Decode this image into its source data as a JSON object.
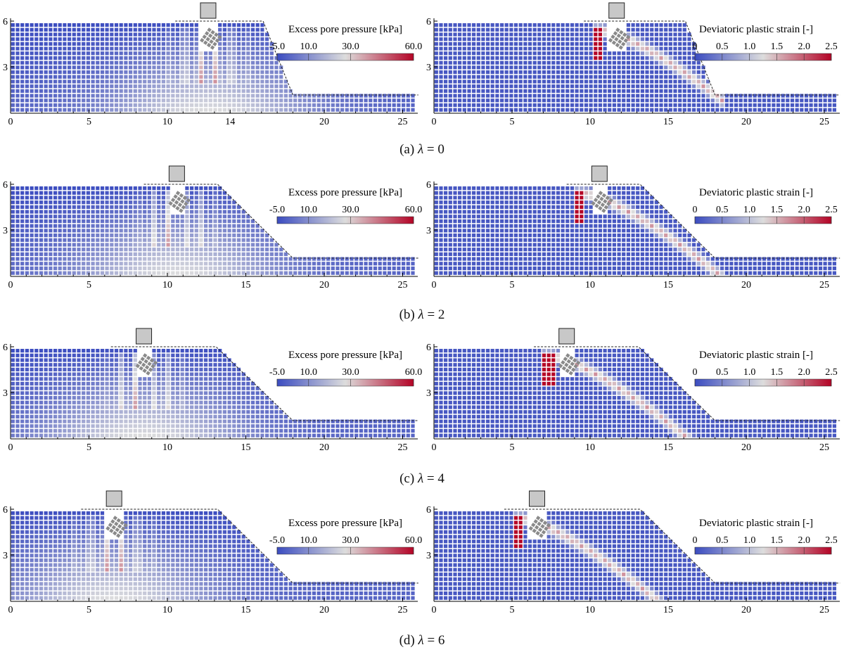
{
  "colors": {
    "low": "#3b4cc0",
    "mid": "#dddddd",
    "high": "#b40426",
    "footing": "#c8c8c8",
    "platform": "#8a8a8a"
  },
  "pore_cbar": {
    "title": "Excess pore pressure [kPa]",
    "ticks": [
      "-5.0",
      "10.0",
      "30.0",
      "60.0"
    ],
    "tick_values": [
      -5,
      10,
      30,
      60
    ],
    "min": -5,
    "max": 60
  },
  "strain_cbar": {
    "title": "Deviatoric plastic strain [-]",
    "ticks": [
      "0",
      "0.5",
      "1.0",
      "1.5",
      "2.0",
      "2.5"
    ],
    "tick_values": [
      0,
      0.5,
      1.0,
      1.5,
      2.0,
      2.5
    ],
    "min": 0,
    "max": 2.5
  },
  "rows": [
    {
      "caption_prefix": "(a)",
      "caption_symbol": "λ",
      "caption_value": "= 0",
      "left": {
        "y_ticks": [
          "6",
          "3"
        ],
        "x_ticks": [
          "0",
          "5",
          "10",
          "14",
          "20",
          "25"
        ],
        "x_values": [
          0,
          5,
          10,
          14,
          20,
          25
        ]
      },
      "right": {
        "y_ticks": [
          "6",
          "3"
        ],
        "x_ticks": [
          "0",
          "5",
          "10",
          "15",
          "20",
          "25"
        ],
        "x_values": [
          0,
          5,
          10,
          15,
          20,
          25
        ]
      },
      "footing_x_left": 12.6,
      "footing_x_right": 11.7
    },
    {
      "caption_prefix": "(b)",
      "caption_symbol": "λ",
      "caption_value": "= 2",
      "left": {
        "y_ticks": [
          "6",
          "3"
        ],
        "x_ticks": [
          "0",
          "5",
          "10",
          "15",
          "20",
          "25"
        ],
        "x_values": [
          0,
          5,
          10,
          15,
          20,
          25
        ]
      },
      "right": {
        "y_ticks": [
          "6",
          "3"
        ],
        "x_ticks": [
          "0",
          "5",
          "10",
          "15",
          "20",
          "25"
        ],
        "x_values": [
          0,
          5,
          10,
          15,
          20,
          25
        ]
      },
      "footing_x_left": 10.6,
      "footing_x_right": 10.6
    },
    {
      "caption_prefix": "(c)",
      "caption_symbol": "λ",
      "caption_value": "= 4",
      "left": {
        "y_ticks": [
          "6",
          "3"
        ],
        "x_ticks": [
          "0",
          "5",
          "10",
          "15",
          "20",
          "25"
        ],
        "x_values": [
          0,
          5,
          10,
          15,
          20,
          25
        ]
      },
      "right": {
        "y_ticks": [
          "6",
          "3"
        ],
        "x_ticks": [
          "0",
          "5",
          "10",
          "15",
          "20",
          "25"
        ],
        "x_values": [
          0,
          5,
          10,
          15,
          20,
          25
        ]
      },
      "footing_x_left": 8.5,
      "footing_x_right": 8.5
    },
    {
      "caption_prefix": "(d)",
      "caption_symbol": "λ",
      "caption_value": "= 6",
      "left": {
        "y_ticks": [
          "6",
          "3"
        ],
        "x_ticks": [
          "0",
          "5",
          "10",
          "15",
          "20",
          "25"
        ],
        "x_values": [
          0,
          5,
          10,
          15,
          20,
          25
        ]
      },
      "right": {
        "y_ticks": [
          "6",
          "3"
        ],
        "x_ticks": [
          "0",
          "5",
          "10",
          "15",
          "20",
          "25"
        ],
        "x_values": [
          0,
          5,
          10,
          15,
          20,
          25
        ]
      },
      "footing_x_left": 6.6,
      "footing_x_right": 6.6
    }
  ]
}
